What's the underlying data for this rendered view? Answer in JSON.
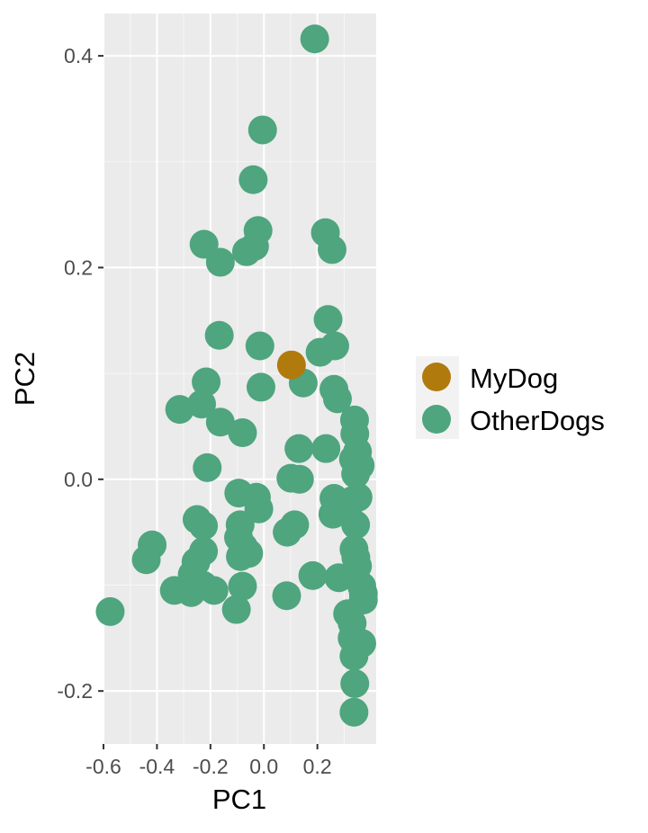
{
  "chart_data": {
    "type": "scatter",
    "title": "",
    "xlabel": "PC1",
    "ylabel": "PC2",
    "xlim": [
      -0.6,
      0.42
    ],
    "ylim": [
      -0.25,
      0.44
    ],
    "x_ticks": [
      -0.6,
      -0.4,
      -0.2,
      0.0,
      0.2
    ],
    "x_tick_labels": [
      "-0.6",
      "-0.4",
      "-0.2",
      "0.0",
      "0.2"
    ],
    "y_ticks": [
      -0.2,
      0.0,
      0.2,
      0.4
    ],
    "y_tick_labels": [
      "-0.2",
      "0.0",
      "0.2",
      "0.4"
    ],
    "grid": true,
    "legend": {
      "position": "right",
      "entries": [
        "MyDog",
        "OtherDogs"
      ]
    },
    "series": [
      {
        "name": "MyDog",
        "color": "#B07A0C",
        "points": [
          [
            0.103,
            0.108
          ]
        ]
      },
      {
        "name": "OtherDogs",
        "color": "#4EA57E",
        "points": [
          [
            0.19,
            0.416
          ],
          [
            -0.005,
            0.33
          ],
          [
            -0.04,
            0.283
          ],
          [
            -0.022,
            0.235
          ],
          [
            -0.035,
            0.22
          ],
          [
            -0.065,
            0.215
          ],
          [
            -0.224,
            0.222
          ],
          [
            -0.163,
            0.205
          ],
          [
            0.23,
            0.233
          ],
          [
            0.255,
            0.217
          ],
          [
            0.24,
            0.151
          ],
          [
            0.265,
            0.126
          ],
          [
            0.21,
            0.12
          ],
          [
            -0.015,
            0.126
          ],
          [
            -0.167,
            0.136
          ],
          [
            -0.216,
            0.092
          ],
          [
            0.147,
            0.091
          ],
          [
            -0.011,
            0.087
          ],
          [
            0.262,
            0.085
          ],
          [
            0.275,
            0.076
          ],
          [
            -0.315,
            0.066
          ],
          [
            -0.233,
            0.071
          ],
          [
            -0.163,
            0.054
          ],
          [
            -0.08,
            0.044
          ],
          [
            0.339,
            0.056
          ],
          [
            0.34,
            0.043
          ],
          [
            0.131,
            0.029
          ],
          [
            0.232,
            0.029
          ],
          [
            0.35,
            0.026
          ],
          [
            0.335,
            0.019
          ],
          [
            0.36,
            0.013
          ],
          [
            0.343,
            0.005
          ],
          [
            -0.212,
            0.011
          ],
          [
            0.101,
            0.001
          ],
          [
            0.133,
            0.0
          ],
          [
            -0.094,
            -0.013
          ],
          [
            -0.028,
            -0.017
          ],
          [
            -0.019,
            -0.028
          ],
          [
            0.262,
            -0.018
          ],
          [
            0.352,
            -0.017
          ],
          [
            0.332,
            -0.02
          ],
          [
            0.258,
            -0.033
          ],
          [
            -0.25,
            -0.038
          ],
          [
            -0.226,
            -0.044
          ],
          [
            -0.089,
            -0.043
          ],
          [
            0.343,
            -0.043
          ],
          [
            0.115,
            -0.043
          ],
          [
            0.087,
            -0.05
          ],
          [
            -0.095,
            -0.055
          ],
          [
            -0.418,
            -0.062
          ],
          [
            -0.226,
            -0.068
          ],
          [
            -0.076,
            -0.064
          ],
          [
            -0.057,
            -0.07
          ],
          [
            0.337,
            -0.066
          ],
          [
            0.344,
            -0.074
          ],
          [
            -0.44,
            -0.076
          ],
          [
            -0.254,
            -0.078
          ],
          [
            -0.088,
            -0.073
          ],
          [
            0.35,
            -0.082
          ],
          [
            -0.268,
            -0.09
          ],
          [
            0.183,
            -0.091
          ],
          [
            0.28,
            -0.093
          ],
          [
            -0.254,
            -0.097
          ],
          [
            -0.228,
            -0.1
          ],
          [
            -0.187,
            -0.105
          ],
          [
            -0.08,
            -0.101
          ],
          [
            0.366,
            -0.101
          ],
          [
            0.372,
            -0.108
          ],
          [
            -0.272,
            -0.107
          ],
          [
            -0.335,
            -0.105
          ],
          [
            0.085,
            -0.11
          ],
          [
            0.372,
            -0.114
          ],
          [
            -0.103,
            -0.123
          ],
          [
            0.313,
            -0.127
          ],
          [
            0.33,
            -0.136
          ],
          [
            -0.575,
            -0.125
          ],
          [
            0.33,
            -0.15
          ],
          [
            0.343,
            -0.157
          ],
          [
            0.366,
            -0.155
          ],
          [
            0.337,
            -0.167
          ],
          [
            0.34,
            -0.193
          ],
          [
            0.337,
            -0.22
          ]
        ]
      }
    ]
  }
}
